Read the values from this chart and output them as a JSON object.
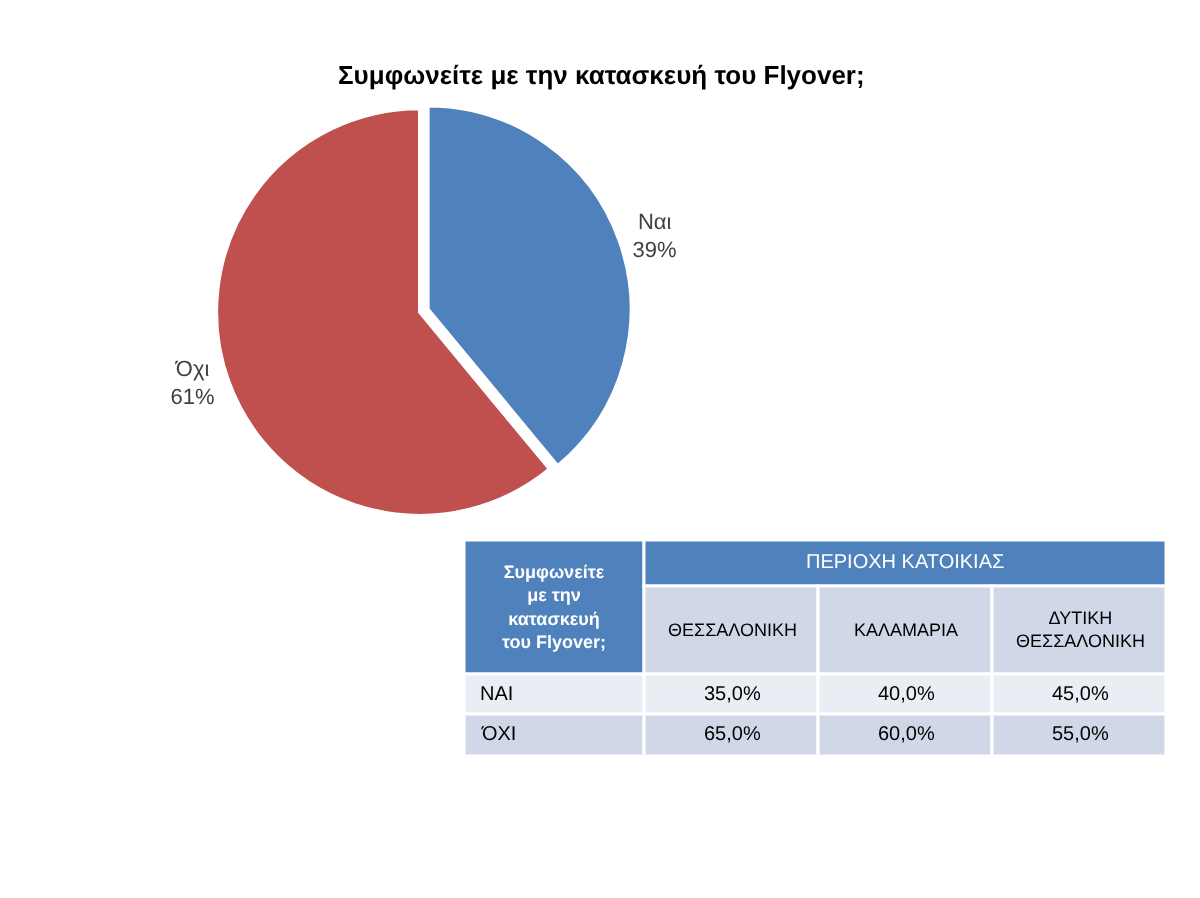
{
  "chart_data": [
    {
      "type": "pie",
      "title": "Συμφωνείτε με την κατασκευή του Flyover;",
      "categories": [
        "Ναι",
        "Όχι"
      ],
      "values": [
        39,
        61
      ],
      "value_labels": [
        "39%",
        "61%"
      ],
      "colors": [
        "#4f81bd",
        "#c0504d"
      ]
    },
    {
      "type": "other",
      "ylabel": "Συμφωνείτε με την κατασκευή του Flyover;",
      "xlabel": "ΠΕΡΙΟΧΗ ΚΑΤΟΙΚΙΑΣ",
      "categories": [
        "ΘΕΣΣΑΛΟΝΙΚΗ",
        "ΚΑΛΑΜΑΡΙΑ",
        "ΔΥΤΙΚΗ ΘΕΣΣΑΛΟΝΙΚΗ"
      ],
      "y_categories": [
        "ΝΑΙ",
        "ΌΧΙ"
      ],
      "cell_labels": [
        [
          "35,0%",
          "40,0%",
          "45,0%"
        ],
        [
          "65,0%",
          "60,0%",
          "55,0%"
        ]
      ]
    }
  ]
}
